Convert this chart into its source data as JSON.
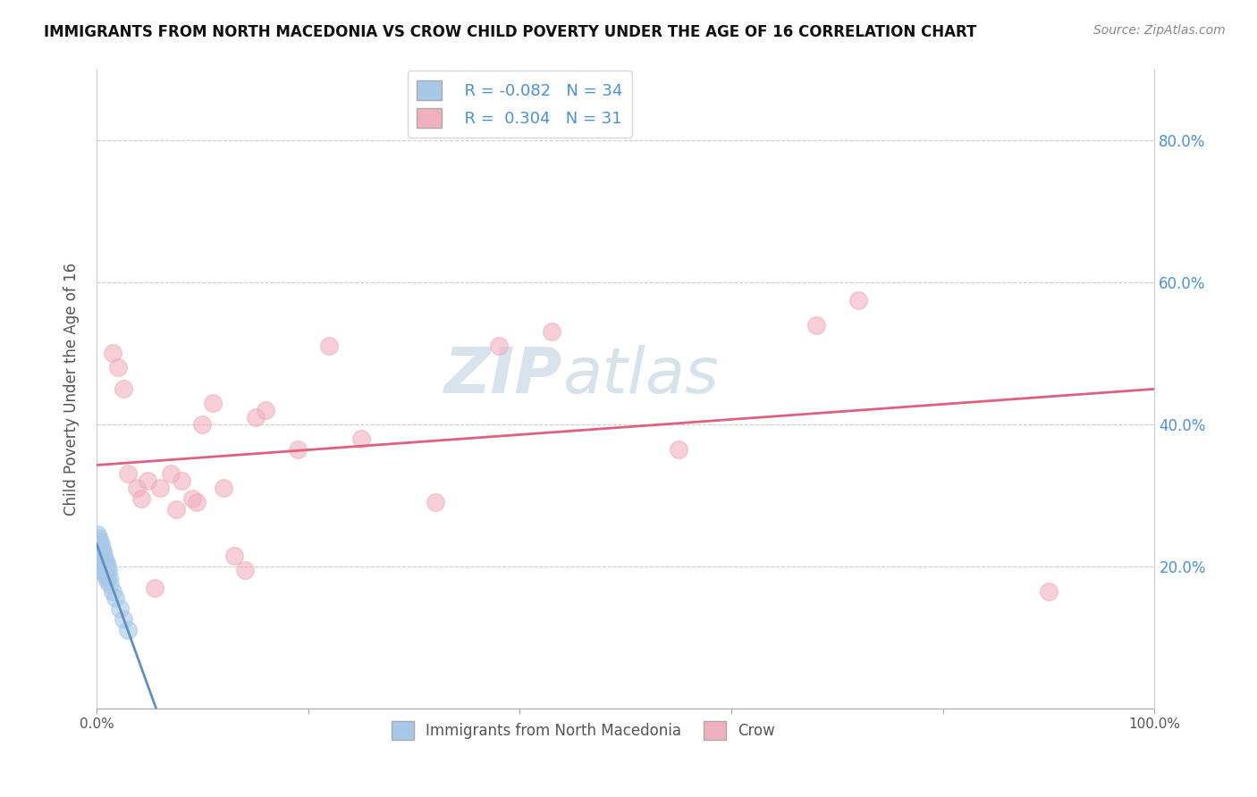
{
  "title": "IMMIGRANTS FROM NORTH MACEDONIA VS CROW CHILD POVERTY UNDER THE AGE OF 16 CORRELATION CHART",
  "source": "Source: ZipAtlas.com",
  "ylabel": "Child Poverty Under the Age of 16",
  "xlim": [
    0,
    1.0
  ],
  "ylim": [
    0,
    0.9
  ],
  "yticks": [
    0.0,
    0.2,
    0.4,
    0.6,
    0.8
  ],
  "right_ytick_labels": [
    "",
    "20.0%",
    "40.0%",
    "60.0%",
    "80.0%"
  ],
  "xticks": [
    0.0,
    0.2,
    0.4,
    0.6,
    0.8,
    1.0
  ],
  "xtick_labels": [
    "0.0%",
    "",
    "",
    "",
    "",
    "100.0%"
  ],
  "legend_r1": "R = -0.082",
  "legend_n1": "N = 34",
  "legend_r2": "R =  0.304",
  "legend_n2": "N = 31",
  "blue_color": "#a8c8e8",
  "pink_color": "#f0b0c0",
  "pink_line_color": "#e06080",
  "blue_line_color": "#6090c0",
  "watermark_zip": "ZIP",
  "watermark_atlas": "atlas",
  "blue_scatter_x": [
    0.001,
    0.001,
    0.001,
    0.002,
    0.002,
    0.002,
    0.002,
    0.003,
    0.003,
    0.003,
    0.004,
    0.004,
    0.004,
    0.005,
    0.005,
    0.005,
    0.006,
    0.006,
    0.007,
    0.007,
    0.008,
    0.008,
    0.009,
    0.009,
    0.01,
    0.01,
    0.011,
    0.012,
    0.013,
    0.015,
    0.018,
    0.022,
    0.025,
    0.03
  ],
  "blue_scatter_y": [
    0.245,
    0.23,
    0.215,
    0.24,
    0.225,
    0.21,
    0.195,
    0.235,
    0.22,
    0.205,
    0.23,
    0.215,
    0.2,
    0.225,
    0.21,
    0.195,
    0.22,
    0.2,
    0.215,
    0.195,
    0.21,
    0.19,
    0.205,
    0.185,
    0.2,
    0.18,
    0.195,
    0.185,
    0.175,
    0.165,
    0.155,
    0.14,
    0.125,
    0.11
  ],
  "pink_scatter_x": [
    0.015,
    0.02,
    0.025,
    0.03,
    0.038,
    0.042,
    0.048,
    0.055,
    0.06,
    0.07,
    0.075,
    0.08,
    0.09,
    0.095,
    0.1,
    0.11,
    0.12,
    0.13,
    0.14,
    0.15,
    0.16,
    0.19,
    0.22,
    0.25,
    0.32,
    0.38,
    0.43,
    0.55,
    0.68,
    0.72,
    0.9
  ],
  "pink_scatter_y": [
    0.5,
    0.48,
    0.45,
    0.33,
    0.31,
    0.295,
    0.32,
    0.17,
    0.31,
    0.33,
    0.28,
    0.32,
    0.295,
    0.29,
    0.4,
    0.43,
    0.31,
    0.215,
    0.195,
    0.41,
    0.42,
    0.365,
    0.51,
    0.38,
    0.29,
    0.51,
    0.53,
    0.365,
    0.54,
    0.575,
    0.165
  ],
  "background_color": "#ffffff",
  "grid_color": "#cccccc"
}
